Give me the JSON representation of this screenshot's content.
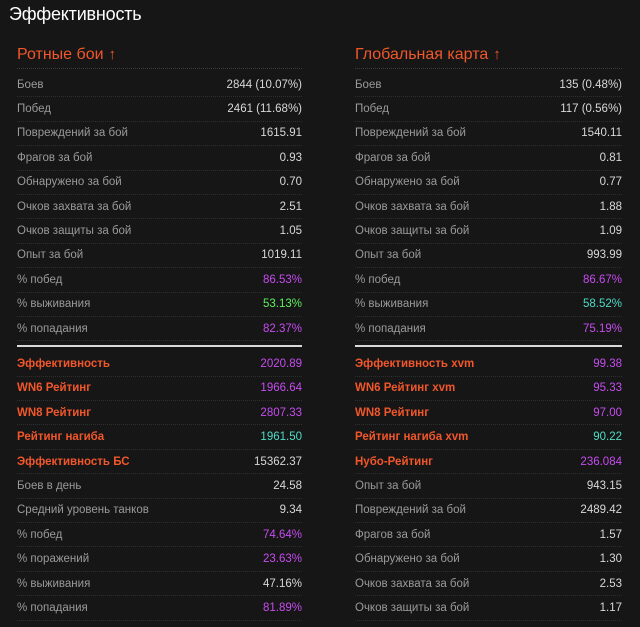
{
  "page_title": "Эффективность",
  "colors": {
    "accent": "#f2572b",
    "purple": "#c64cf0",
    "green": "#5ef05e",
    "teal": "#4fdcc6"
  },
  "left": {
    "title": "Ротные бои",
    "arrow": "↑",
    "top_rows": [
      {
        "label": "Боев",
        "value": "2844 (10.07%)",
        "color": "white"
      },
      {
        "label": "Побед",
        "value": "2461 (11.68%)",
        "color": "white"
      },
      {
        "label": "Повреждений за бой",
        "value": "1615.91",
        "color": "white"
      },
      {
        "label": "Фрагов за бой",
        "value": "0.93",
        "color": "white"
      },
      {
        "label": "Обнаружено за бой",
        "value": "0.70",
        "color": "white"
      },
      {
        "label": "Очков захвата за бой",
        "value": "2.51",
        "color": "white"
      },
      {
        "label": "Очков защиты за бой",
        "value": "1.05",
        "color": "white"
      },
      {
        "label": "Опыт за бой",
        "value": "1019.11",
        "color": "white"
      },
      {
        "label": "% побед",
        "value": "86.53%",
        "color": "purple"
      },
      {
        "label": "% выживания",
        "value": "53.13%",
        "color": "green"
      },
      {
        "label": "% попадания",
        "value": "82.37%",
        "color": "purple"
      }
    ],
    "bottom_rows": [
      {
        "label": "Эффективность",
        "value": "2020.89",
        "color": "purple",
        "accent": true
      },
      {
        "label": "WN6 Рейтинг",
        "value": "1966.64",
        "color": "purple",
        "accent": true
      },
      {
        "label": "WN8 Рейтинг",
        "value": "2807.33",
        "color": "purple",
        "accent": true
      },
      {
        "label": "Рейтинг нагиба",
        "value": "1961.50",
        "color": "teal",
        "accent": true
      },
      {
        "label": "Эффективность БС",
        "value": "15362.37",
        "color": "white",
        "accent": true
      },
      {
        "label": "Боев в день",
        "value": "24.58",
        "color": "white",
        "accent": false
      },
      {
        "label": "Средний уровень танков",
        "value": "9.34",
        "color": "white",
        "accent": false
      },
      {
        "label": "% побед",
        "value": "74.64%",
        "color": "purple",
        "accent": false
      },
      {
        "label": "% поражений",
        "value": "23.63%",
        "color": "purple",
        "accent": false
      },
      {
        "label": "% выживания",
        "value": "47.16%",
        "color": "white",
        "accent": false
      },
      {
        "label": "% попадания",
        "value": "81.89%",
        "color": "purple",
        "accent": false
      }
    ]
  },
  "right": {
    "title": "Глобальная карта",
    "arrow": "↑",
    "top_rows": [
      {
        "label": "Боев",
        "value": "135 (0.48%)",
        "color": "white"
      },
      {
        "label": "Побед",
        "value": "117 (0.56%)",
        "color": "white"
      },
      {
        "label": "Повреждений за бой",
        "value": "1540.11",
        "color": "white"
      },
      {
        "label": "Фрагов за бой",
        "value": "0.81",
        "color": "white"
      },
      {
        "label": "Обнаружено за бой",
        "value": "0.77",
        "color": "white"
      },
      {
        "label": "Очков захвата за бой",
        "value": "1.88",
        "color": "white"
      },
      {
        "label": "Очков защиты за бой",
        "value": "1.09",
        "color": "white"
      },
      {
        "label": "Опыт за бой",
        "value": "993.99",
        "color": "white"
      },
      {
        "label": "% побед",
        "value": "86.67%",
        "color": "purple"
      },
      {
        "label": "% выживания",
        "value": "58.52%",
        "color": "teal"
      },
      {
        "label": "% попадания",
        "value": "75.19%",
        "color": "purple"
      }
    ],
    "bottom_rows": [
      {
        "label": "Эффективность xvm",
        "value": "99.38",
        "color": "purple",
        "accent": true
      },
      {
        "label": "WN6 Рейтинг xvm",
        "value": "95.33",
        "color": "purple",
        "accent": true
      },
      {
        "label": "WN8 Рейтинг",
        "value": "97.00",
        "color": "purple",
        "accent": true
      },
      {
        "label": "Рейтинг нагиба xvm",
        "value": "90.22",
        "color": "teal",
        "accent": true
      },
      {
        "label": "Нубо-Рейтинг",
        "value": "236.084",
        "color": "purple",
        "accent": true
      },
      {
        "label": "Опыт за бой",
        "value": "943.15",
        "color": "white",
        "accent": false
      },
      {
        "label": "Повреждений за бой",
        "value": "2489.42",
        "color": "white",
        "accent": false
      },
      {
        "label": "Фрагов за бой",
        "value": "1.57",
        "color": "white",
        "accent": false
      },
      {
        "label": "Обнаружено за бой",
        "value": "1.30",
        "color": "white",
        "accent": false
      },
      {
        "label": "Очков захвата за бой",
        "value": "2.53",
        "color": "white",
        "accent": false
      },
      {
        "label": "Очков защиты за бой",
        "value": "1.17",
        "color": "white",
        "accent": false
      }
    ]
  }
}
